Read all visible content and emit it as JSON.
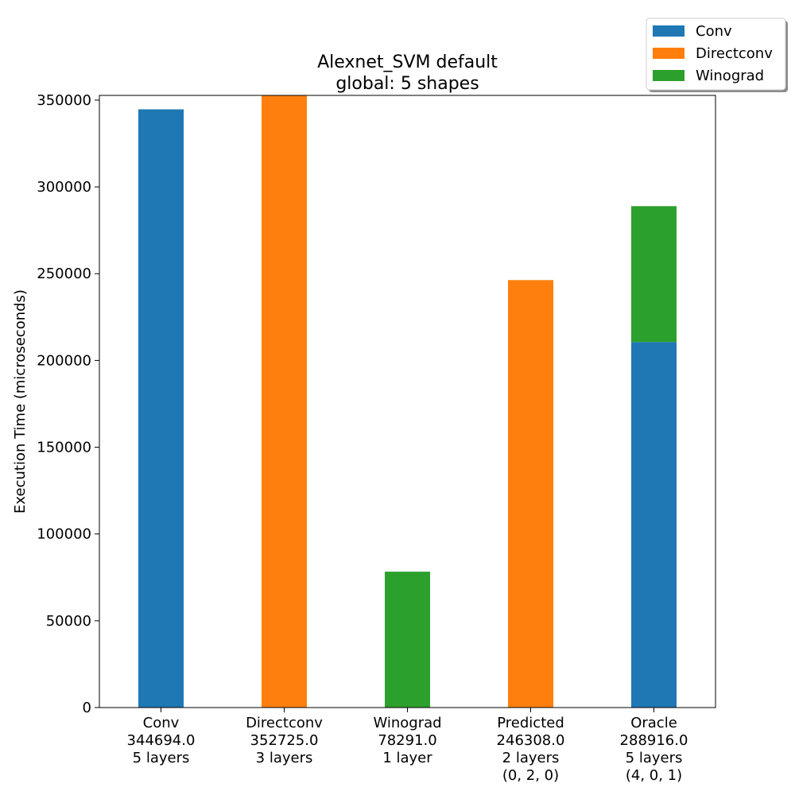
{
  "chart_data": {
    "type": "bar",
    "stacked": true,
    "title": [
      "Alexnet_SVM default",
      "global: 5 shapes"
    ],
    "xlabel": "",
    "ylabel": "Execution Time (microseconds)",
    "ylim": [
      0,
      352725
    ],
    "yticks": [
      0,
      50000,
      100000,
      150000,
      200000,
      250000,
      300000,
      350000
    ],
    "ytick_labels": [
      "0",
      "50000",
      "100000",
      "150000",
      "200000",
      "250000",
      "300000",
      "350000"
    ],
    "grid": false,
    "legend_position": "top-right",
    "categories": [
      [
        "Conv",
        "344694.0",
        "5 layers"
      ],
      [
        "Directconv",
        "352725.0",
        "3 layers"
      ],
      [
        "Winograd",
        "78291.0",
        "1 layer"
      ],
      [
        "Predicted",
        "246308.0",
        "2 layers",
        "(0, 2, 0)"
      ],
      [
        "Oracle",
        "288916.0",
        "5 layers",
        "(4, 0, 1)"
      ]
    ],
    "series": [
      {
        "name": "Conv",
        "color": "#1f77b4",
        "values": [
          344694,
          0,
          0,
          0,
          210620
        ]
      },
      {
        "name": "Directconv",
        "color": "#ff7f0e",
        "values": [
          0,
          352725,
          0,
          246308,
          0
        ]
      },
      {
        "name": "Winograd",
        "color": "#2ca02c",
        "values": [
          0,
          0,
          78291,
          0,
          78296
        ]
      }
    ]
  }
}
